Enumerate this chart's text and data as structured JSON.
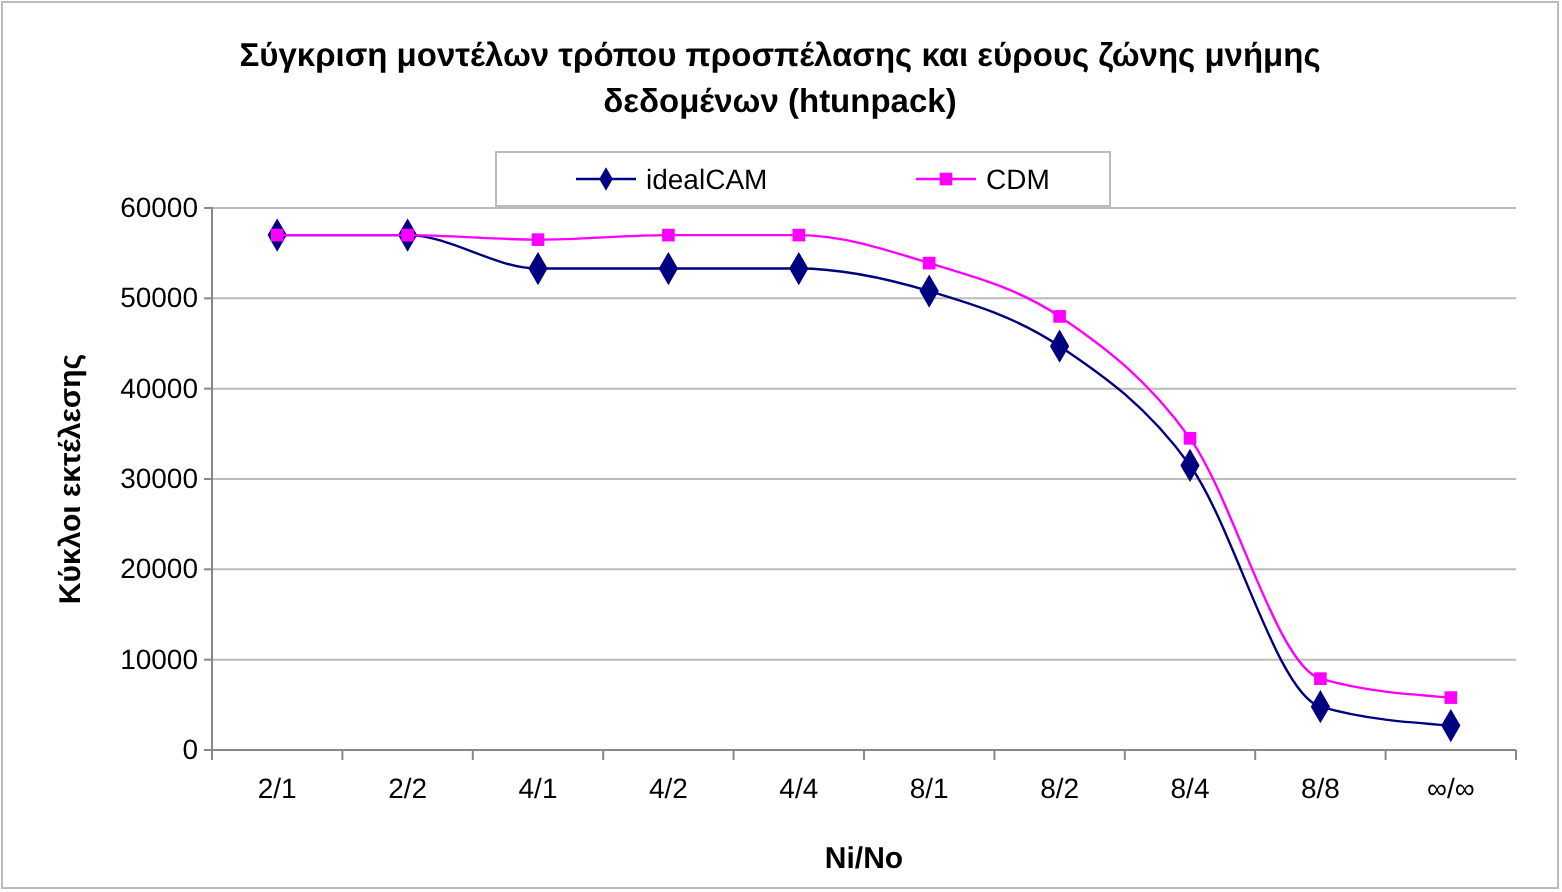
{
  "chart_data": {
    "type": "line",
    "title": "Σύγκριση μοντέλων τρόπου προσπέλασης και εύρους ζώνης μνήμης δεδομένων (htunpack)",
    "xlabel": "Ni/No",
    "ylabel": "Κύκλοι εκτέλεσης",
    "categories": [
      "2/1",
      "2/2",
      "4/1",
      "4/2",
      "4/4",
      "8/1",
      "8/2",
      "8/4",
      "8/8",
      "∞/∞"
    ],
    "series": [
      {
        "name": "idealCAM",
        "color": "#000080",
        "marker": "diamond",
        "values": [
          57000,
          57000,
          53300,
          53300,
          53300,
          50800,
          44700,
          31500,
          4800,
          2700
        ]
      },
      {
        "name": "CDM",
        "color": "#ff00ff",
        "marker": "square",
        "values": [
          57000,
          57000,
          56500,
          57000,
          57000,
          53900,
          48000,
          34500,
          7900,
          5800
        ]
      }
    ],
    "ylim": [
      0,
      60000
    ],
    "yticks": [
      0,
      10000,
      20000,
      30000,
      40000,
      50000,
      60000
    ],
    "grid": "y",
    "legend": "top"
  }
}
